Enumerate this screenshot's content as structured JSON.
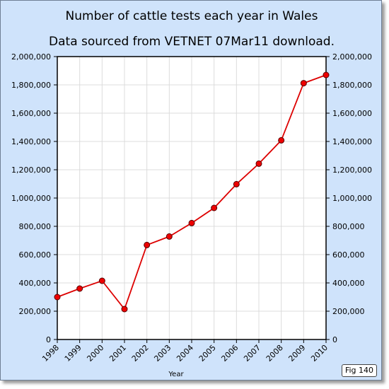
{
  "chart_data": {
    "type": "line",
    "title": "Number of cattle tests each year in Wales",
    "subtitle": "Data sourced from VETNET 07Mar11 download.",
    "xlabel": "Year",
    "ylabel": "",
    "x": [
      "1998",
      "1999",
      "2000",
      "2001",
      "2002",
      "2003",
      "2004",
      "2005",
      "2006",
      "2007",
      "2008",
      "2009",
      "2010"
    ],
    "series": [
      {
        "values": [
          300000,
          360000,
          415000,
          215000,
          668000,
          728000,
          823000,
          930000,
          1098000,
          1243000,
          1408000,
          1812000,
          1870000
        ],
        "color": "#dd0000"
      }
    ],
    "ylim": [
      0,
      2000000
    ],
    "yticks": [
      0,
      200000,
      400000,
      600000,
      800000,
      1000000,
      1200000,
      1400000,
      1600000,
      1800000,
      2000000
    ],
    "ytick_labels": [
      "0",
      "200,000",
      "400,000",
      "600,000",
      "800,000",
      "1,000,000",
      "1,200,000",
      "1,400,000",
      "1,600,000",
      "1,800,000",
      "2,000,000"
    ],
    "grid": true,
    "right_axis": true
  },
  "badge": {
    "label": "Fig 140"
  },
  "colors": {
    "background": "#cfe3fb",
    "plot_area": "#ffffff",
    "line": "#dd0000",
    "marker_fill": "#ee0000",
    "grid": "#dcdcdc"
  }
}
